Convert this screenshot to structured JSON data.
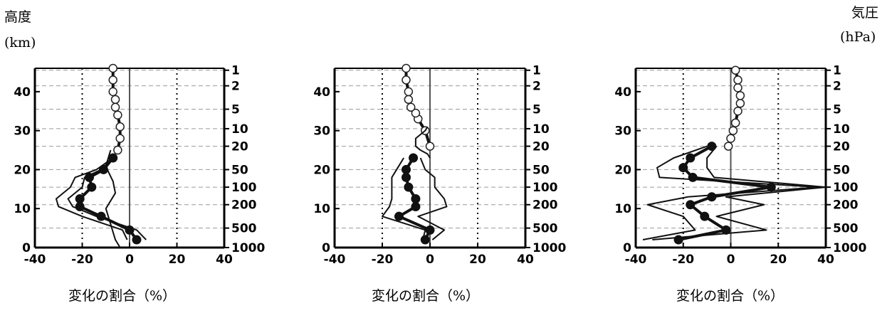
{
  "labels": {
    "left_axis_title": "高度",
    "left_axis_unit": "(km)",
    "right_axis_title": "気圧",
    "right_axis_unit": "(hPa)",
    "x_axis_title": "変化の割合（%）"
  },
  "chart_data": [
    {
      "type": "line",
      "xlabel": "変化の割合（%）",
      "ylabel": "高度 (km)",
      "y2label": "気圧 (hPa)",
      "xlim": [
        -40,
        40
      ],
      "ylim": [
        0,
        46
      ],
      "xticks": [
        -40,
        -20,
        0,
        20,
        40
      ],
      "yticks": [
        0,
        10,
        20,
        30,
        40
      ],
      "pressure_ticks": [
        {
          "label": "1",
          "alt": 45.5
        },
        {
          "label": "2",
          "alt": 41.5
        },
        {
          "label": "5",
          "alt": 35.5
        },
        {
          "label": "10",
          "alt": 30.5
        },
        {
          "label": "20",
          "alt": 26
        },
        {
          "label": "50",
          "alt": 20
        },
        {
          "label": "100",
          "alt": 15.5
        },
        {
          "label": "200",
          "alt": 11
        },
        {
          "label": "500",
          "alt": 5
        },
        {
          "label": "1000",
          "alt": 0
        }
      ],
      "series": [
        {
          "marker": "filled",
          "x": [
            3,
            0,
            -12,
            -21,
            -21,
            -16,
            -17,
            -11,
            -7
          ],
          "y": [
            2,
            4.5,
            8,
            10.5,
            12.5,
            15.5,
            18,
            20,
            23
          ]
        },
        {
          "marker": "open",
          "x": [
            -5,
            -4,
            -4,
            -5,
            -6,
            -6,
            -7,
            -7,
            -7
          ],
          "y": [
            25,
            28,
            31,
            34,
            36,
            38,
            40,
            43,
            46
          ]
        },
        {
          "marker": "none",
          "x": [
            7,
            3,
            -14,
            -24,
            -26,
            -20,
            -19,
            -12,
            -7
          ],
          "y": [
            2,
            4.5,
            8,
            10.5,
            12.5,
            15.5,
            18,
            20,
            23
          ]
        },
        {
          "marker": "none",
          "x": [
            -1,
            -3,
            -20,
            -30,
            -31,
            -25,
            -23,
            -14,
            -7
          ],
          "y": [
            2,
            4.5,
            8,
            10.5,
            12.5,
            15.5,
            18,
            20,
            23
          ]
        },
        {
          "marker": "none",
          "x": [
            -4,
            -6,
            -10,
            -6,
            -7,
            -9,
            -10,
            -9,
            -8
          ],
          "y": [
            0,
            2,
            10,
            14,
            17,
            19.5,
            21,
            23,
            25
          ]
        }
      ]
    },
    {
      "type": "line",
      "xlabel": "変化の割合（%）",
      "ylabel": "高度 (km)",
      "y2label": "気圧 (hPa)",
      "xlim": [
        -40,
        40
      ],
      "ylim": [
        0,
        46
      ],
      "xticks": [
        -40,
        -20,
        0,
        20,
        40
      ],
      "yticks": [
        0,
        10,
        20,
        30,
        40
      ],
      "pressure_ticks": [
        {
          "label": "1",
          "alt": 45.5
        },
        {
          "label": "2",
          "alt": 41.5
        },
        {
          "label": "5",
          "alt": 35.5
        },
        {
          "label": "10",
          "alt": 30.5
        },
        {
          "label": "20",
          "alt": 26
        },
        {
          "label": "50",
          "alt": 20
        },
        {
          "label": "100",
          "alt": 15.5
        },
        {
          "label": "200",
          "alt": 11
        },
        {
          "label": "500",
          "alt": 5
        },
        {
          "label": "1000",
          "alt": 0
        }
      ],
      "series": [
        {
          "marker": "filled",
          "x": [
            -2,
            0,
            -13,
            -6,
            -6,
            -9,
            -10,
            -10,
            -7
          ],
          "y": [
            2,
            4.5,
            8,
            10.5,
            12.5,
            15.5,
            18,
            20,
            23
          ]
        },
        {
          "marker": "open",
          "x": [
            0,
            -2,
            -5,
            -6,
            -8,
            -9,
            -9,
            -10,
            -10
          ],
          "y": [
            26,
            30,
            33,
            34.5,
            36,
            38,
            40,
            43,
            46
          ]
        },
        {
          "marker": "none",
          "x": [
            1,
            6,
            -5,
            7,
            6,
            2,
            2,
            -2,
            -4
          ],
          "y": [
            2,
            4.5,
            8,
            10.5,
            12.5,
            15.5,
            18,
            20,
            23
          ]
        },
        {
          "marker": "none",
          "x": [
            -3,
            -2,
            -20,
            -17,
            -16,
            -16,
            -16,
            -14,
            -11
          ],
          "y": [
            2,
            4.5,
            8,
            10.5,
            12.5,
            15.5,
            18,
            20,
            23
          ]
        },
        {
          "marker": "none",
          "x": [
            0,
            -1,
            -4,
            -6,
            -6,
            -6,
            -4,
            -2,
            -1
          ],
          "y": [
            23,
            24,
            25,
            26,
            27,
            28,
            29,
            30,
            31
          ]
        }
      ]
    },
    {
      "type": "line",
      "xlabel": "変化の割合（%）",
      "ylabel": "高度 (km)",
      "y2label": "気圧 (hPa)",
      "xlim": [
        -40,
        40
      ],
      "ylim": [
        0,
        46
      ],
      "xticks": [
        -40,
        -20,
        0,
        20,
        40
      ],
      "yticks": [
        0,
        10,
        20,
        30,
        40
      ],
      "pressure_ticks": [
        {
          "label": "1",
          "alt": 45.5
        },
        {
          "label": "2",
          "alt": 41.5
        },
        {
          "label": "5",
          "alt": 35.5
        },
        {
          "label": "10",
          "alt": 30.5
        },
        {
          "label": "20",
          "alt": 26
        },
        {
          "label": "50",
          "alt": 20
        },
        {
          "label": "100",
          "alt": 15.5
        },
        {
          "label": "200",
          "alt": 11
        },
        {
          "label": "500",
          "alt": 5
        },
        {
          "label": "1000",
          "alt": 0
        }
      ],
      "series": [
        {
          "marker": "filled",
          "x": [
            -22,
            -2,
            -11,
            -17,
            -8,
            17,
            -16,
            -20,
            -17,
            -8
          ],
          "y": [
            2,
            4.5,
            8,
            11,
            13,
            15.5,
            18,
            20.5,
            23,
            26
          ]
        },
        {
          "marker": "open",
          "x": [
            -1,
            0,
            1,
            2,
            3,
            4,
            4,
            3,
            3,
            2
          ],
          "y": [
            26,
            28,
            30,
            32,
            35,
            37,
            39,
            41,
            43,
            45.5
          ]
        },
        {
          "marker": "none",
          "x": [
            -33,
            15,
            -6,
            14,
            -2,
            40,
            -7,
            -10,
            -10,
            -6
          ],
          "y": [
            2,
            4.5,
            8,
            11,
            13,
            15.5,
            18,
            20.5,
            23,
            26
          ]
        },
        {
          "marker": "none",
          "x": [
            -37,
            -15,
            -20,
            -35,
            -18,
            37,
            -30,
            -31,
            -24,
            -10
          ],
          "y": [
            2,
            4.5,
            8,
            11,
            13,
            15.5,
            18,
            20.5,
            23,
            26
          ]
        }
      ]
    }
  ]
}
